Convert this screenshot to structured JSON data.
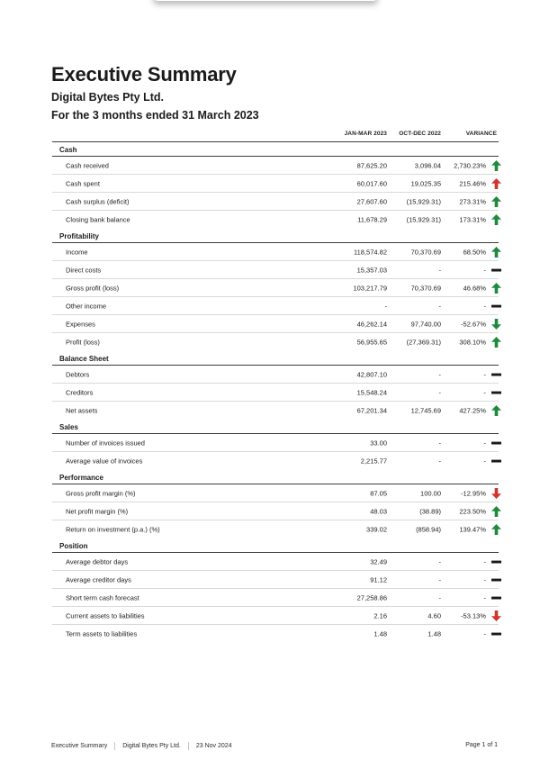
{
  "page": {
    "title": "Executive Summary",
    "company": "Digital Bytes Pty Ltd.",
    "period": "For the 3 months ended 31 March 2023"
  },
  "colors": {
    "green": "#1e8a3c",
    "red": "#d0342c",
    "black": "#191919"
  },
  "table": {
    "columns": [
      "JAN-MAR 2023",
      "OCT-DEC 2022",
      "VARIANCE"
    ],
    "sections": [
      {
        "title": "Cash",
        "rows": [
          {
            "label": "Cash received",
            "current": "87,625.20",
            "previous": "3,096.04",
            "variance": "2,730.23%",
            "icon": "arrow-up",
            "icon_color": "green"
          },
          {
            "label": "Cash spent",
            "current": "60,017.60",
            "previous": "19,025.35",
            "variance": "215.46%",
            "icon": "arrow-up",
            "icon_color": "red"
          },
          {
            "label": "Cash surplus (deficit)",
            "current": "27,607.60",
            "previous": "(15,929.31)",
            "variance": "273.31%",
            "icon": "arrow-up",
            "icon_color": "green"
          },
          {
            "label": "Closing bank balance",
            "current": "11,678.29",
            "previous": "(15,929.31)",
            "variance": "173.31%",
            "icon": "arrow-up",
            "icon_color": "green"
          }
        ]
      },
      {
        "title": "Profitability",
        "rows": [
          {
            "label": "Income",
            "current": "118,574.82",
            "previous": "70,370.69",
            "variance": "68.50%",
            "icon": "arrow-up",
            "icon_color": "green"
          },
          {
            "label": "Direct costs",
            "current": "15,357.03",
            "previous": "-",
            "variance": "-",
            "icon": "dash",
            "icon_color": "black"
          },
          {
            "label": "Gross profit (loss)",
            "current": "103,217.79",
            "previous": "70,370.69",
            "variance": "46.68%",
            "icon": "arrow-up",
            "icon_color": "green"
          },
          {
            "label": "Other income",
            "current": "-",
            "previous": "-",
            "variance": "-",
            "icon": "dash",
            "icon_color": "black"
          },
          {
            "label": "Expenses",
            "current": "46,262.14",
            "previous": "97,740.00",
            "variance": "-52.67%",
            "icon": "arrow-down",
            "icon_color": "green"
          },
          {
            "label": "Profit (loss)",
            "current": "56,955.65",
            "previous": "(27,369.31)",
            "variance": "308.10%",
            "icon": "arrow-up",
            "icon_color": "green"
          }
        ]
      },
      {
        "title": "Balance Sheet",
        "rows": [
          {
            "label": "Debtors",
            "current": "42,807.10",
            "previous": "-",
            "variance": "-",
            "icon": "dash",
            "icon_color": "black"
          },
          {
            "label": "Creditors",
            "current": "15,548.24",
            "previous": "-",
            "variance": "-",
            "icon": "dash",
            "icon_color": "black"
          },
          {
            "label": "Net assets",
            "current": "67,201.34",
            "previous": "12,745.69",
            "variance": "427.25%",
            "icon": "arrow-up",
            "icon_color": "green"
          }
        ]
      },
      {
        "title": "Sales",
        "rows": [
          {
            "label": "Number of invoices issued",
            "current": "33.00",
            "previous": "-",
            "variance": "-",
            "icon": "dash",
            "icon_color": "black"
          },
          {
            "label": "Average value of invoices",
            "current": "2,215.77",
            "previous": "-",
            "variance": "-",
            "icon": "dash",
            "icon_color": "black"
          }
        ]
      },
      {
        "title": "Performance",
        "rows": [
          {
            "label": "Gross profit margin (%)",
            "current": "87.05",
            "previous": "100.00",
            "variance": "-12.95%",
            "icon": "arrow-down",
            "icon_color": "red"
          },
          {
            "label": "Net profit margin (%)",
            "current": "48.03",
            "previous": "(38.89)",
            "variance": "223.50%",
            "icon": "arrow-up",
            "icon_color": "green"
          },
          {
            "label": "Return on investment (p.a.) (%)",
            "current": "339.02",
            "previous": "(858.94)",
            "variance": "139.47%",
            "icon": "arrow-up",
            "icon_color": "green"
          }
        ]
      },
      {
        "title": "Position",
        "rows": [
          {
            "label": "Average debtor days",
            "current": "32.49",
            "previous": "-",
            "variance": "-",
            "icon": "dash",
            "icon_color": "black"
          },
          {
            "label": "Average creditor days",
            "current": "91.12",
            "previous": "-",
            "variance": "-",
            "icon": "dash",
            "icon_color": "black"
          },
          {
            "label": "Short term cash forecast",
            "current": "27,258.86",
            "previous": "-",
            "variance": "-",
            "icon": "dash",
            "icon_color": "black"
          },
          {
            "label": "Current assets to liabilities",
            "current": "2.16",
            "previous": "4.60",
            "variance": "-53.13%",
            "icon": "arrow-down",
            "icon_color": "red"
          },
          {
            "label": "Term assets to liabilities",
            "current": "1.48",
            "previous": "1.48",
            "variance": "-",
            "icon": "dash",
            "icon_color": "black"
          }
        ]
      }
    ]
  },
  "footer": {
    "items": [
      "Executive Summary",
      "Digital Bytes Pty Ltd.",
      "23 Nov 2024"
    ],
    "page": "Page 1 of 1"
  }
}
